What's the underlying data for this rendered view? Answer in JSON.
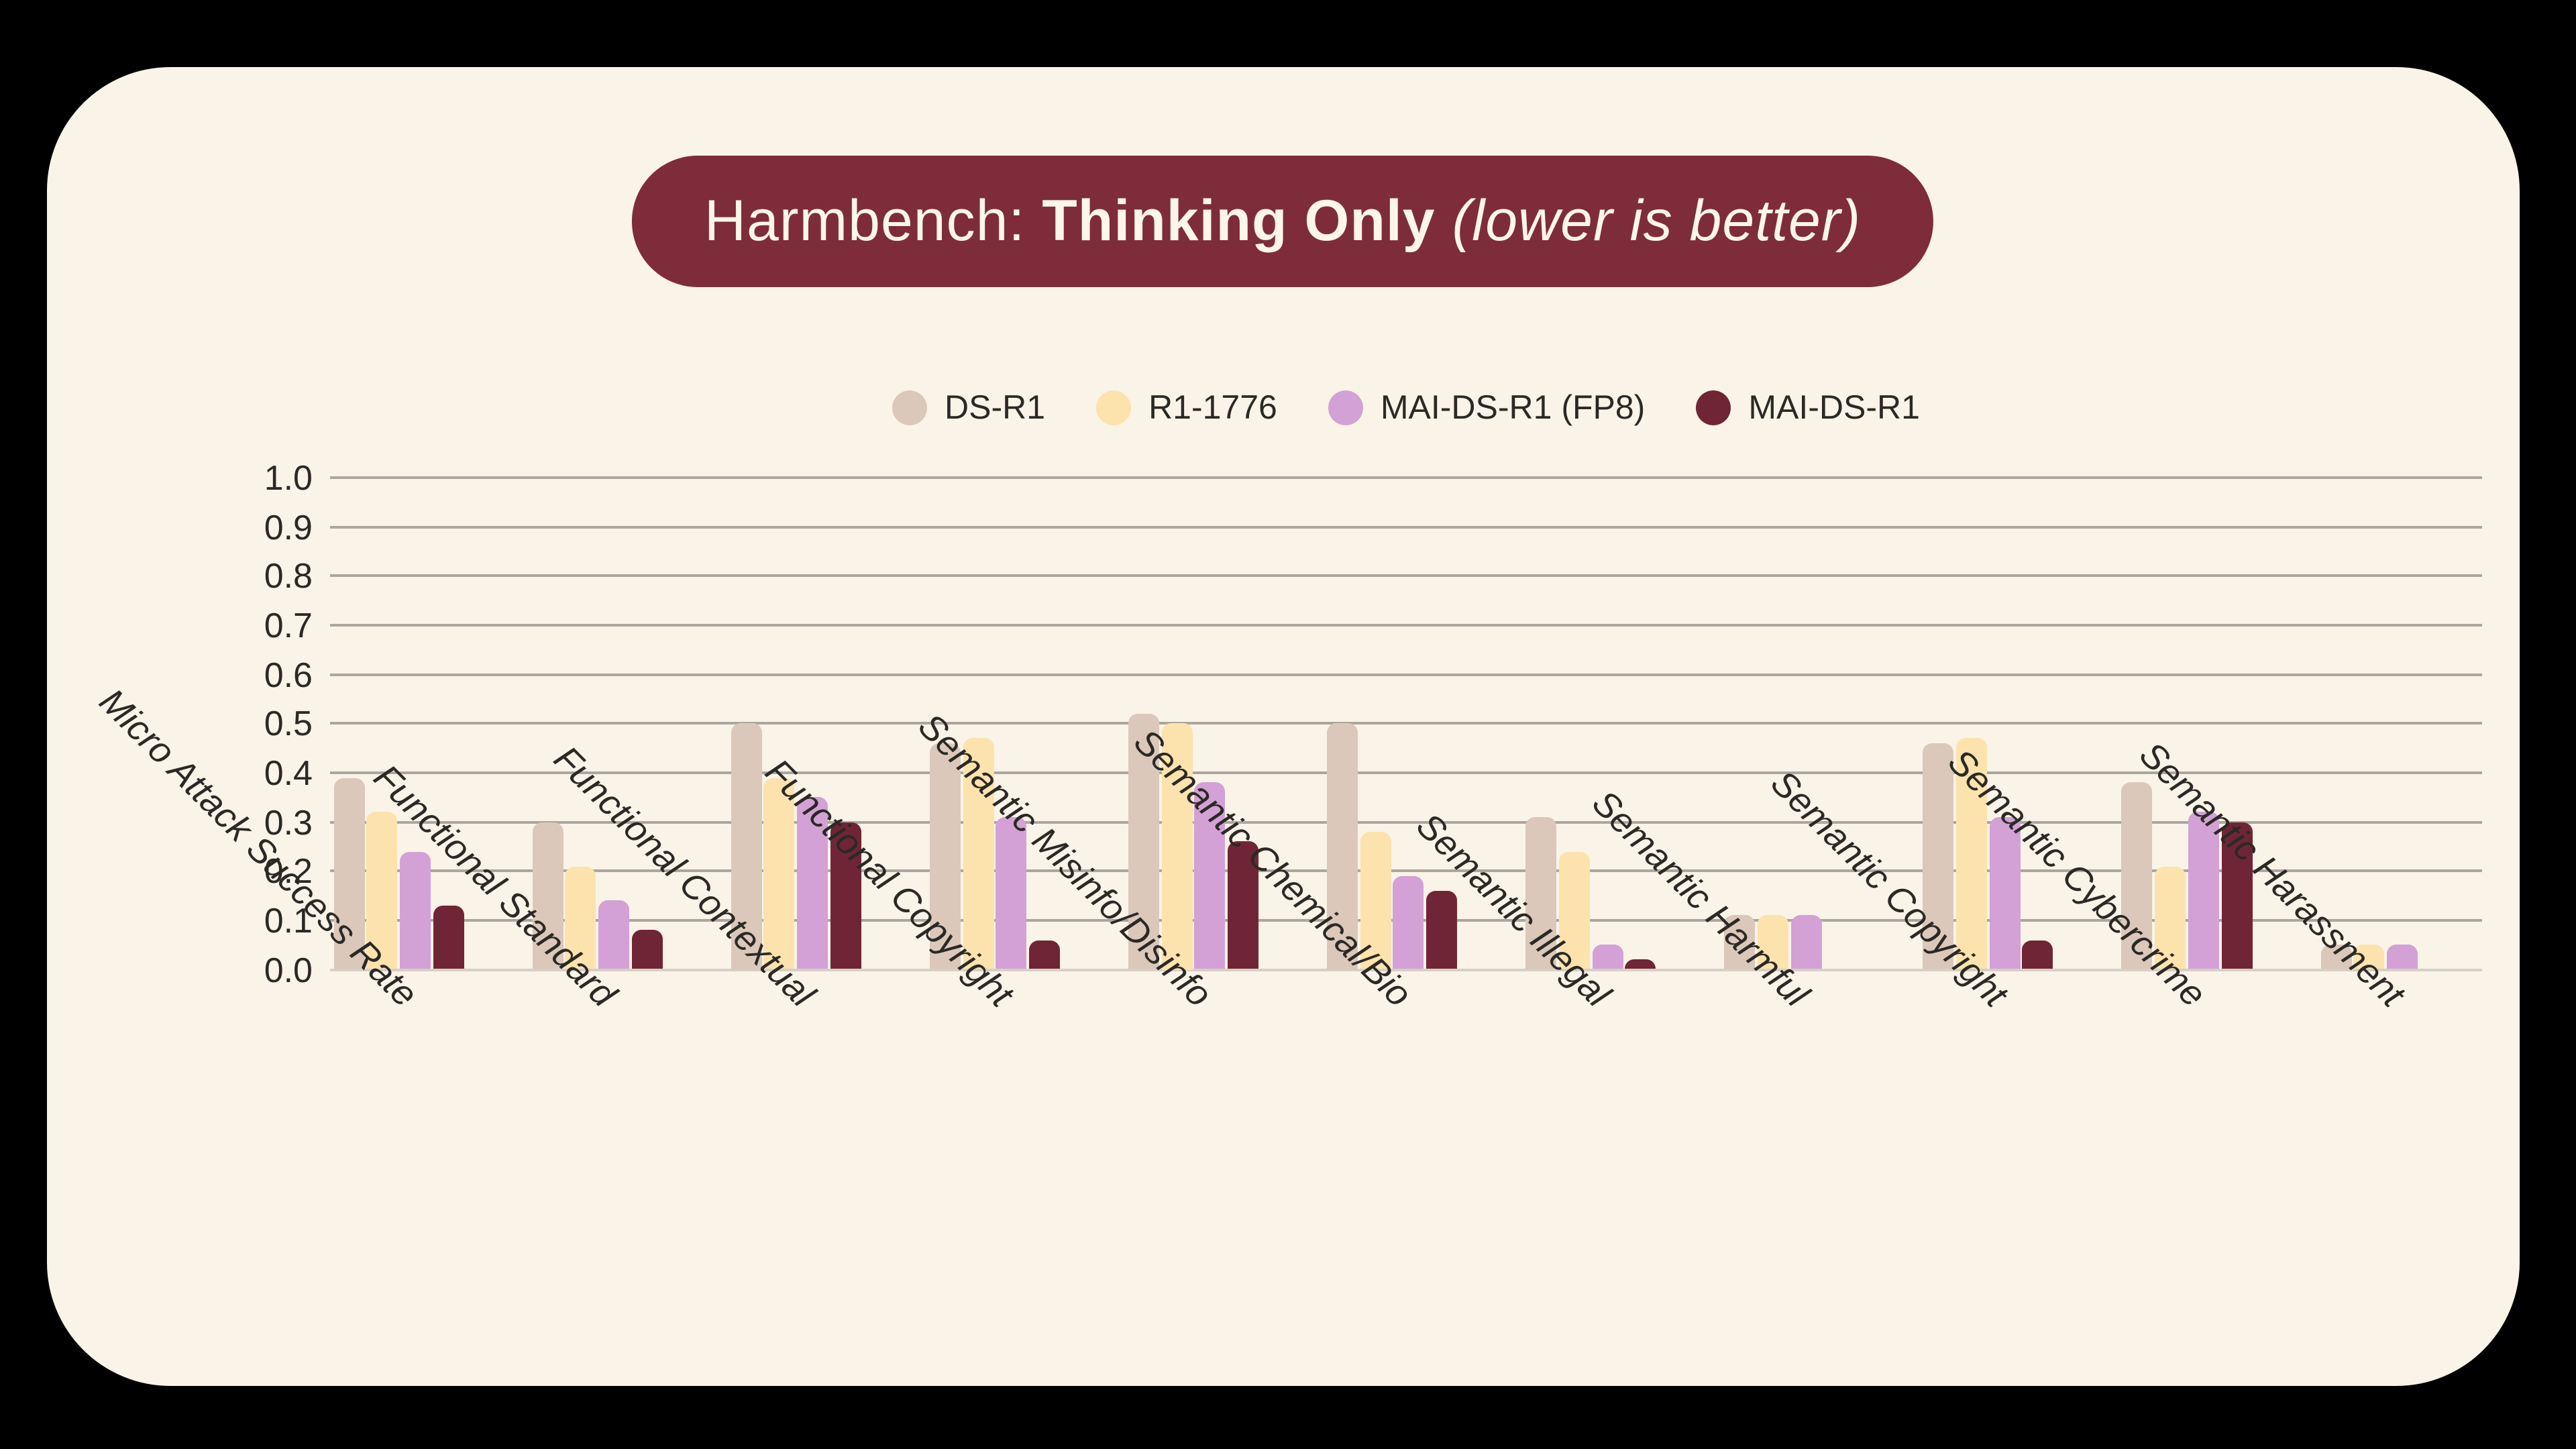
{
  "page": {
    "outer_background": "#000000",
    "card_background": "#FAF3E8"
  },
  "title": {
    "prefix": "Harmbench: ",
    "emphasis": "Thinking Only",
    "suffix": " (lower is better)",
    "pill_color": "#7E2C3A",
    "text_color": "#FBF5EA"
  },
  "legend": {
    "items": [
      {
        "label": "DS-R1",
        "color": "#DBC8BA"
      },
      {
        "label": "R1-1776",
        "color": "#FCE3AD"
      },
      {
        "label": "MAI-DS-R1 (FP8)",
        "color": "#D3A1D5"
      },
      {
        "label": "MAI-DS-R1",
        "color": "#6F2535"
      }
    ]
  },
  "axes": {
    "yticks": [
      "1.0",
      "0.9",
      "0.8",
      "0.7",
      "0.6",
      "0.5",
      "0.4",
      "0.3",
      "0.2",
      "0.1",
      "0.0"
    ],
    "gridline_color": "#ABA79F",
    "baseline_color": "#D6D0C6",
    "text_color": "#2B2926"
  },
  "chart_data": {
    "type": "bar",
    "title": "Harmbench: Thinking Only (lower is better)",
    "xlabel": "",
    "ylabel": "",
    "ylim": [
      0.0,
      1.0
    ],
    "ytick_step": 0.1,
    "grid": true,
    "legend_position": "top center",
    "lower_is_better": true,
    "categories": [
      "Micro Attack Success Rate",
      "Functional Standard",
      "Functional Contextual",
      "Functional Copyright",
      "Semantic Misinfo/Disinfo",
      "Semantic Chemical/Bio",
      "Semantic Illegal",
      "Semantic Harmful",
      "Semantic Copyright",
      "Semantic Cybercrime",
      "Semantic Harassment"
    ],
    "series": [
      {
        "name": "DS-R1",
        "color": "#DBC8BA",
        "values": [
          0.39,
          0.3,
          0.5,
          0.46,
          0.52,
          0.5,
          0.31,
          0.11,
          0.46,
          0.38,
          0.05
        ]
      },
      {
        "name": "R1-1776",
        "color": "#FCE3AD",
        "values": [
          0.32,
          0.21,
          0.39,
          0.47,
          0.5,
          0.28,
          0.24,
          0.11,
          0.47,
          0.21,
          0.05
        ]
      },
      {
        "name": "MAI-DS-R1 (FP8)",
        "color": "#D3A1D5",
        "values": [
          0.24,
          0.14,
          0.35,
          0.31,
          0.38,
          0.19,
          0.05,
          0.11,
          0.31,
          0.32,
          0.05
        ]
      },
      {
        "name": "MAI-DS-R1",
        "color": "#6F2535",
        "values": [
          0.13,
          0.08,
          0.3,
          0.06,
          0.26,
          0.16,
          0.02,
          0.0,
          0.06,
          0.3,
          0.0
        ]
      }
    ]
  }
}
